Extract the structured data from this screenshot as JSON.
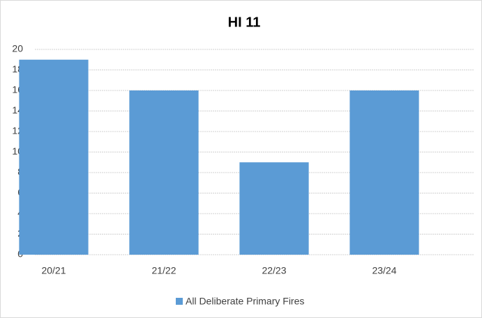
{
  "chart_data": {
    "type": "bar",
    "title": "HI 11",
    "categories": [
      "20/21",
      "21/22",
      "22/23",
      "23/24"
    ],
    "series": [
      {
        "name": "All Deliberate Primary Fires",
        "color": "#5b9bd5",
        "values": [
          19,
          16,
          9,
          16
        ]
      }
    ],
    "ylim": [
      0,
      20
    ],
    "yticks": [
      0,
      2,
      4,
      6,
      8,
      10,
      12,
      14,
      16,
      18,
      20
    ],
    "grid": true,
    "legend": "bottom"
  }
}
